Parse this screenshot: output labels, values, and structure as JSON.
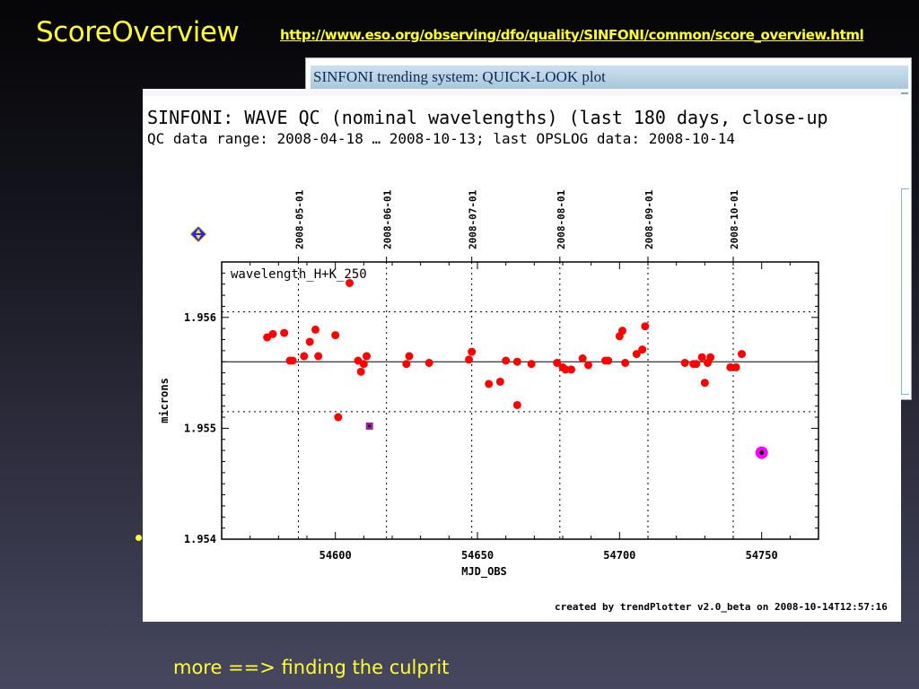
{
  "slide": {
    "title": "ScoreOverview",
    "url": "http://www.eso.org/observing/dfo/quality/SINFONI/common/score_overview.html",
    "footer_note": "more ==> finding the culprit"
  },
  "background_window": {
    "title": "SINFONI trending system: QUICK-LOOK plot"
  },
  "plot_window": {
    "title": "SINFONI: WAVE QC (nominal wavelengths) (last 180 days, close-up",
    "subtitle": "QC data range: 2008-04-18 … 2008-10-13; last OPSLOG data: 2008-10-14",
    "footer": "created by trendPlotter v2.0_beta on 2008-10-14T12:57:16"
  },
  "colors": {
    "slide_text": "#ffff33",
    "data_point": "#ff0000",
    "highlight": "#ff00ff",
    "header_bar": "#b8d2e6"
  },
  "icons": {
    "nav": "navigation-arrows-icon"
  },
  "chart_data": {
    "type": "scatter",
    "panel_label": "wavelength_H+K_250",
    "xlabel": "MJD_OBS",
    "ylabel": "microns",
    "xlim": [
      54560,
      54770
    ],
    "ylim": [
      1.954,
      1.9565
    ],
    "x_ticks": [
      54600,
      54650,
      54700,
      54750
    ],
    "y_ticks": [
      1.954,
      1.955,
      1.956
    ],
    "date_ticks": [
      {
        "label": "2008-05-01",
        "mjd": 54587
      },
      {
        "label": "2008-06-01",
        "mjd": 54618
      },
      {
        "label": "2008-07-01",
        "mjd": 54648
      },
      {
        "label": "2008-08-01",
        "mjd": 54679
      },
      {
        "label": "2008-09-01",
        "mjd": 54710
      },
      {
        "label": "2008-10-01",
        "mjd": 54740
      }
    ],
    "reference_line": 1.9556,
    "threshold_lines": [
      1.95515,
      1.95605
    ],
    "series": [
      {
        "values": [
          [
            54576,
            1.95582
          ],
          [
            54578,
            1.95585
          ],
          [
            54582,
            1.95586
          ],
          [
            54584,
            1.95561
          ],
          [
            54585,
            1.95561
          ],
          [
            54589,
            1.95565
          ],
          [
            54591,
            1.95578
          ],
          [
            54593,
            1.95589
          ],
          [
            54594,
            1.95565
          ],
          [
            54600,
            1.95584
          ],
          [
            54601,
            1.9551
          ],
          [
            54605,
            1.95631
          ],
          [
            54608,
            1.95561
          ],
          [
            54609,
            1.95551
          ],
          [
            54610,
            1.95558
          ],
          [
            54611,
            1.95565
          ],
          [
            54625,
            1.95558
          ],
          [
            54626,
            1.95565
          ],
          [
            54633,
            1.95559
          ],
          [
            54647,
            1.95562
          ],
          [
            54648,
            1.95569
          ],
          [
            54654,
            1.9554
          ],
          [
            54658,
            1.95542
          ],
          [
            54660,
            1.95561
          ],
          [
            54664,
            1.95521
          ],
          [
            54664,
            1.9556
          ],
          [
            54669,
            1.95558
          ],
          [
            54678,
            1.95559
          ],
          [
            54680,
            1.95555
          ],
          [
            54681,
            1.95553
          ],
          [
            54683,
            1.95553
          ],
          [
            54687,
            1.95563
          ],
          [
            54689,
            1.95557
          ],
          [
            54695,
            1.95561
          ],
          [
            54696,
            1.95561
          ],
          [
            54700,
            1.95583
          ],
          [
            54701,
            1.95588
          ],
          [
            54702,
            1.95559
          ],
          [
            54706,
            1.95567
          ],
          [
            54708,
            1.95571
          ],
          [
            54709,
            1.95592
          ],
          [
            54723,
            1.95559
          ],
          [
            54726,
            1.95558
          ],
          [
            54727,
            1.95558
          ],
          [
            54729,
            1.95564
          ],
          [
            54730,
            1.95541
          ],
          [
            54731,
            1.95559
          ],
          [
            54732,
            1.95564
          ],
          [
            54739,
            1.95555
          ],
          [
            54741,
            1.95555
          ],
          [
            54743,
            1.95567
          ]
        ]
      }
    ],
    "flagged_points": [
      {
        "x": 54612,
        "y": 1.95502,
        "style": "small-magenta"
      },
      {
        "x": 54750,
        "y": 1.95478,
        "style": "large-magenta"
      }
    ]
  }
}
